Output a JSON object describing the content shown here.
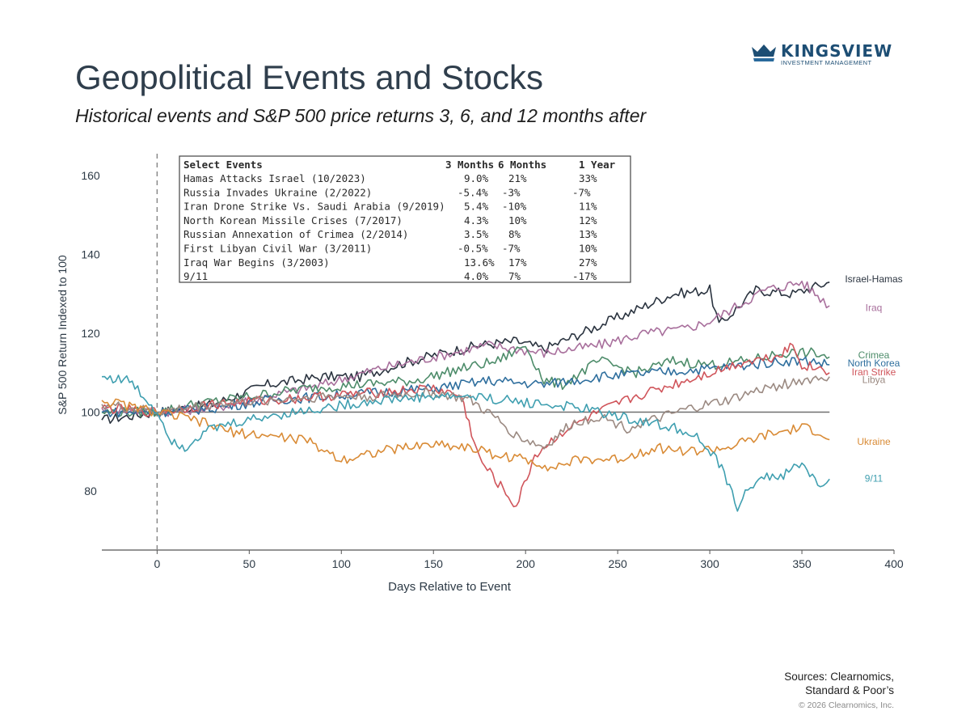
{
  "header": {
    "logo_name": "KINGSVIEW",
    "logo_tagline": "INVESTMENT MANAGEMENT",
    "title": "Geopolitical Events and Stocks",
    "subtitle": "Historical events and S&P 500 price returns 3, 6, and 12 months after"
  },
  "footer": {
    "sources_line1": "Sources: Clearnomics,",
    "sources_line2": "Standard & Poor’s",
    "copyright": "© 2026 Clearnomics, Inc."
  },
  "colors": {
    "brand": "#1d4e74",
    "baseline": "#6b6b6b",
    "event_line": "#8a8a8a"
  },
  "chart_data": {
    "type": "line",
    "title": "",
    "xlabel": "Days Relative to Event",
    "ylabel": "S&P 500 Return Indexed to 100",
    "xlim": [
      -30,
      400
    ],
    "ylim": [
      65,
      166
    ],
    "x_ticks": [
      0,
      50,
      100,
      150,
      200,
      250,
      300,
      350,
      400
    ],
    "y_ticks": [
      80,
      100,
      120,
      140,
      160
    ],
    "grid": false,
    "reference_line_y": 100,
    "event_marker_x": 0,
    "table": {
      "headers": [
        "Select Events",
        "3 Months",
        "6 Months",
        "1 Year"
      ],
      "rows": [
        [
          "Hamas Attacks Israel (10/2023)",
          "9.0%",
          "21%",
          "33%"
        ],
        [
          "Russia Invades Ukraine (2/2022)",
          "-5.4%",
          "-3%",
          "-7%"
        ],
        [
          "Iran Drone Strike Vs. Saudi Arabia (9/2019)",
          "5.4%",
          "-10%",
          "11%"
        ],
        [
          "North Korean Missile Crises (7/2017)",
          "4.3%",
          "10%",
          "12%"
        ],
        [
          "Russian Annexation of Crimea (2/2014)",
          "3.5%",
          "8%",
          "13%"
        ],
        [
          "First Libyan Civil War (3/2011)",
          "-0.5%",
          "-7%",
          "10%"
        ],
        [
          "Iraq War Begins (3/2003)",
          "13.6%",
          "17%",
          "27%"
        ],
        [
          "9/11",
          "4.0%",
          "7%",
          "-17%"
        ]
      ]
    },
    "series": [
      {
        "name": "Israel-Hamas",
        "color": "#2b3440",
        "x": [
          -30,
          0,
          30,
          60,
          90,
          110,
          130,
          155,
          175,
          195,
          210,
          225,
          245,
          265,
          280,
          300,
          305,
          325,
          345,
          365
        ],
        "y": [
          98,
          100,
          102,
          107,
          109,
          109,
          112,
          115,
          117,
          118,
          116,
          119,
          123,
          127,
          130,
          131,
          122,
          131,
          130,
          133
        ]
      },
      {
        "name": "Iraq",
        "color": "#a86f9c",
        "x": [
          -30,
          0,
          30,
          60,
          90,
          120,
          150,
          180,
          210,
          240,
          265,
          285,
          300,
          315,
          330,
          350,
          360,
          365
        ],
        "y": [
          101,
          100,
          101,
          104,
          107,
          111,
          114,
          117,
          115,
          117,
          120,
          121,
          123,
          127,
          131,
          133,
          129,
          127
        ]
      },
      {
        "name": "Crimea",
        "color": "#4d8c6a",
        "x": [
          -30,
          0,
          20,
          50,
          80,
          110,
          140,
          165,
          185,
          200,
          210,
          220,
          240,
          260,
          280,
          300,
          320,
          340,
          355,
          365
        ],
        "y": [
          100,
          100,
          102,
          104,
          106,
          107,
          108,
          111,
          113,
          117,
          108,
          107,
          113,
          110,
          113,
          112,
          113,
          115,
          115,
          114
        ]
      },
      {
        "name": "North Korea",
        "color": "#2f6f9e",
        "x": [
          -30,
          0,
          30,
          60,
          90,
          120,
          150,
          180,
          210,
          240,
          270,
          300,
          320,
          340,
          355,
          365
        ],
        "y": [
          100,
          100,
          101,
          103,
          104,
          105,
          106,
          108,
          107,
          109,
          110,
          111,
          112,
          113,
          113,
          112
        ]
      },
      {
        "name": "Iran Strike",
        "color": "#d0555b",
        "x": [
          -30,
          0,
          30,
          60,
          90,
          120,
          150,
          165,
          175,
          185,
          195,
          205,
          220,
          240,
          260,
          280,
          300,
          320,
          335,
          345,
          350,
          360,
          365
        ],
        "y": [
          101,
          100,
          102,
          103,
          104,
          105,
          106,
          104,
          88,
          82,
          76,
          89,
          95,
          100,
          104,
          107,
          110,
          113,
          114,
          117,
          112,
          111,
          110
        ]
      },
      {
        "name": "Libya",
        "color": "#9b8a82",
        "x": [
          -30,
          0,
          30,
          60,
          90,
          120,
          150,
          170,
          185,
          195,
          210,
          225,
          240,
          255,
          270,
          290,
          310,
          330,
          350,
          365
        ],
        "y": [
          102,
          100,
          102,
          103,
          104,
          104,
          105,
          103,
          98,
          94,
          91,
          97,
          99,
          96,
          98,
          101,
          103,
          106,
          108,
          109
        ]
      },
      {
        "name": "Ukraine",
        "color": "#d98b36",
        "x": [
          -30,
          0,
          20,
          40,
          60,
          80,
          100,
          120,
          150,
          170,
          185,
          200,
          215,
          230,
          250,
          270,
          290,
          310,
          330,
          350,
          360,
          365
        ],
        "y": [
          103,
          100,
          98,
          95,
          94,
          93,
          88,
          90,
          92,
          91,
          89,
          88,
          86,
          88,
          88,
          91,
          90,
          91,
          94,
          96,
          95,
          93
        ]
      },
      {
        "name": "9/11",
        "color": "#3f9fb0",
        "x": [
          -30,
          -15,
          0,
          8,
          15,
          25,
          40,
          60,
          90,
          120,
          150,
          170,
          190,
          210,
          230,
          250,
          270,
          290,
          305,
          315,
          325,
          340,
          350,
          360,
          365
        ],
        "y": [
          109,
          108,
          100,
          93,
          91,
          95,
          97,
          99,
          101,
          103,
          104,
          104,
          103,
          102,
          101,
          99,
          97,
          95,
          87,
          76,
          83,
          84,
          87,
          81,
          83
        ]
      }
    ]
  }
}
